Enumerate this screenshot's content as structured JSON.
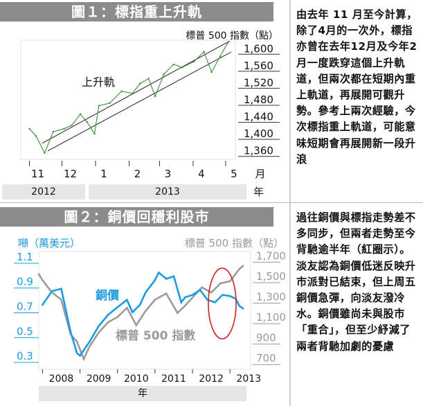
{
  "panel1": {
    "title": "圖１：標指重上升軌",
    "text": "由去年 11 月至今計算，除了4月的一次外，標指亦曾在去年12月及今年2月一度跌穿這個上升軌道，但兩次都在短期內重上軌道，再展開可觀升勢。參考上兩次經驗，今次標指重上軌道，可能意味短期會再展開新一段升浪"
  },
  "panel2": {
    "title": "圖２：銅價回穩利股市",
    "text": "過往銅價與標指走勢差不多同步，但兩者走勢至今背馳逾半年（紅圈示）。淡友認為銅價低迷反映升市派對已結束，但上周五銅價急彈，向淡友潑冷水。銅價雖尚未與股市「重合」，但至少紓減了兩者背馳加劇的憂慮"
  },
  "colors": {
    "copper": "#1a9be0",
    "sp500": "#9a9a9a",
    "title_band": "#8c8c8c",
    "circle": "#d42020",
    "axis_text_grey": "#9a9a9a"
  },
  "chart_data": [
    {
      "type": "line",
      "title": "圖１：標指重上升軌",
      "ylabel": "標普 500 指數（點）",
      "ylim": [
        1340,
        1620
      ],
      "yticks": [
        "1,600",
        "1,560",
        "1,520",
        "1,480",
        "1,440",
        "1,400",
        "1,360"
      ],
      "ytick_values": [
        1600,
        1560,
        1520,
        1480,
        1440,
        1400,
        1360
      ],
      "x_month_labels": [
        "11",
        "12",
        "1",
        "2",
        "3",
        "4",
        "5"
      ],
      "x_unit": "月",
      "years": [
        "2012",
        "2013"
      ],
      "year_unit": "年",
      "annotation": "上升軌",
      "series": [
        {
          "name": "",
          "x": [
            "2012-11-01",
            "2012-11-07",
            "2012-11-15",
            "2012-11-23",
            "2012-12-03",
            "2012-12-10",
            "2012-12-18",
            "2012-12-24",
            "2012-12-31",
            "2013-01-04",
            "2013-01-14",
            "2013-01-25",
            "2013-02-04",
            "2013-02-11",
            "2013-02-19",
            "2013-02-25",
            "2013-03-05",
            "2013-03-14",
            "2013-03-22",
            "2013-04-02",
            "2013-04-11",
            "2013-04-18",
            "2013-04-26",
            "2013-05-03"
          ],
          "values": [
            1412,
            1395,
            1355,
            1405,
            1412,
            1420,
            1446,
            1428,
            1400,
            1466,
            1472,
            1500,
            1495,
            1518,
            1530,
            1488,
            1540,
            1563,
            1556,
            1570,
            1593,
            1545,
            1582,
            1614
          ]
        }
      ]
    },
    {
      "type": "line",
      "title": "圖２：銅價回穩利股市",
      "ylabel_left": "噸（萬美元）",
      "ylabel_right": "標普 500 指數（點）",
      "ylim_left": [
        0.2,
        1.15
      ],
      "ylim_right": [
        600,
        1750
      ],
      "yticks_left": [
        "1.1",
        "0.9",
        "0.7",
        "0.5",
        "0.3"
      ],
      "ytick_values_left": [
        1.1,
        0.9,
        0.7,
        0.5,
        0.3
      ],
      "yticks_right": [
        "1,700",
        "1,500",
        "1,300",
        "1,100",
        "900",
        "700"
      ],
      "ytick_values_right": [
        1700,
        1500,
        1300,
        1100,
        900,
        700
      ],
      "x_year_labels": [
        "2008",
        "2009",
        "2010",
        "2011",
        "2012",
        "2013"
      ],
      "x_unit": "年",
      "series": [
        {
          "name": "銅價",
          "axis": "left",
          "x": [
            2008.0,
            2008.25,
            2008.5,
            2008.75,
            2008.92,
            2009.0,
            2009.25,
            2009.5,
            2009.75,
            2010.0,
            2010.25,
            2010.4,
            2010.6,
            2010.75,
            2011.0,
            2011.1,
            2011.3,
            2011.5,
            2011.7,
            2011.8,
            2012.0,
            2012.2,
            2012.4,
            2012.6,
            2012.8,
            2013.0,
            2013.15,
            2013.25,
            2013.35
          ],
          "values": [
            0.72,
            0.83,
            0.85,
            0.5,
            0.33,
            0.31,
            0.42,
            0.55,
            0.64,
            0.7,
            0.76,
            0.66,
            0.72,
            0.82,
            0.92,
            0.98,
            0.93,
            0.95,
            0.74,
            0.78,
            0.8,
            0.84,
            0.76,
            0.74,
            0.8,
            0.79,
            0.77,
            0.71,
            0.69
          ]
        },
        {
          "name": "標普 500 指數",
          "axis": "right",
          "x": [
            2007.9,
            2008.0,
            2008.25,
            2008.5,
            2008.75,
            2008.92,
            2009.1,
            2009.25,
            2009.5,
            2009.75,
            2010.0,
            2010.25,
            2010.5,
            2010.75,
            2011.0,
            2011.3,
            2011.6,
            2011.8,
            2012.0,
            2012.25,
            2012.5,
            2012.75,
            2013.0,
            2013.25,
            2013.35
          ],
          "values": [
            1530,
            1470,
            1350,
            1280,
            940,
            870,
            700,
            820,
            960,
            1060,
            1110,
            1200,
            1030,
            1170,
            1280,
            1340,
            1150,
            1220,
            1300,
            1400,
            1350,
            1440,
            1460,
            1580,
            1610
          ]
        }
      ],
      "annotations": [
        "銅價",
        "標普 500 指數"
      ]
    }
  ]
}
